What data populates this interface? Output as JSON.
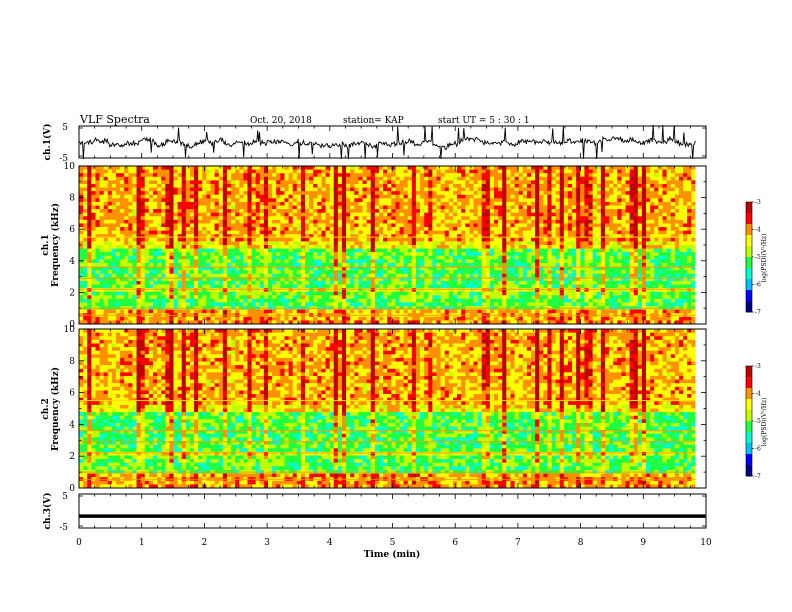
{
  "chart_data": {
    "type": "heatmap",
    "header": {
      "title": "VLF Spectra",
      "date": "Oct. 20, 2018",
      "station": "station= KAP",
      "start": "start  UT  =   5  : 30 : 1"
    },
    "time_axis": {
      "label": "Time  (min)",
      "ticks": [
        0,
        1,
        2,
        3,
        4,
        5,
        6,
        7,
        8,
        9,
        10
      ],
      "range": [
        0,
        10
      ],
      "data_end": 9.83
    },
    "panels": [
      {
        "id": "ch1-waveform",
        "type": "line",
        "ylabel": "ch.1(V)",
        "yticks": [
          "5",
          "-5"
        ],
        "yrange": [
          -5,
          5
        ]
      },
      {
        "id": "ch1-spectrogram",
        "type": "heatmap",
        "ylabel_lines": [
          "ch.1",
          "Frequency  (kHz)"
        ],
        "yticks": [
          0,
          2,
          4,
          6,
          8,
          10
        ],
        "yrange": [
          0,
          10
        ],
        "colorbar": {
          "label": "log(PSD)(V²/Hz)",
          "ticks": [
            "-3",
            "-4",
            "-5",
            "-6",
            "-7"
          ],
          "range": [
            -7,
            -3
          ]
        }
      },
      {
        "id": "ch2-spectrogram",
        "type": "heatmap",
        "ylabel_lines": [
          "ch.2",
          "Frequency  (kHz)"
        ],
        "yticks": [
          0,
          2,
          4,
          6,
          8,
          10
        ],
        "yrange": [
          0,
          10
        ],
        "colorbar": {
          "label": "log(PSD)(V²/Hz)",
          "ticks": [
            "-3",
            "-4",
            "-5",
            "-6",
            "-7"
          ],
          "range": [
            -7,
            -3
          ]
        }
      },
      {
        "id": "ch3-waveform",
        "type": "line",
        "ylabel": "ch.3(V)",
        "yticks": [
          "5",
          "-5"
        ],
        "yrange": [
          -5,
          5
        ],
        "level": -1.5
      }
    ],
    "colormap": [
      "#00008b",
      "#0000ff",
      "#00c0ff",
      "#00ffd0",
      "#20ff40",
      "#c0ff00",
      "#ffff00",
      "#ff9000",
      "#ff0000",
      "#c00000"
    ]
  }
}
